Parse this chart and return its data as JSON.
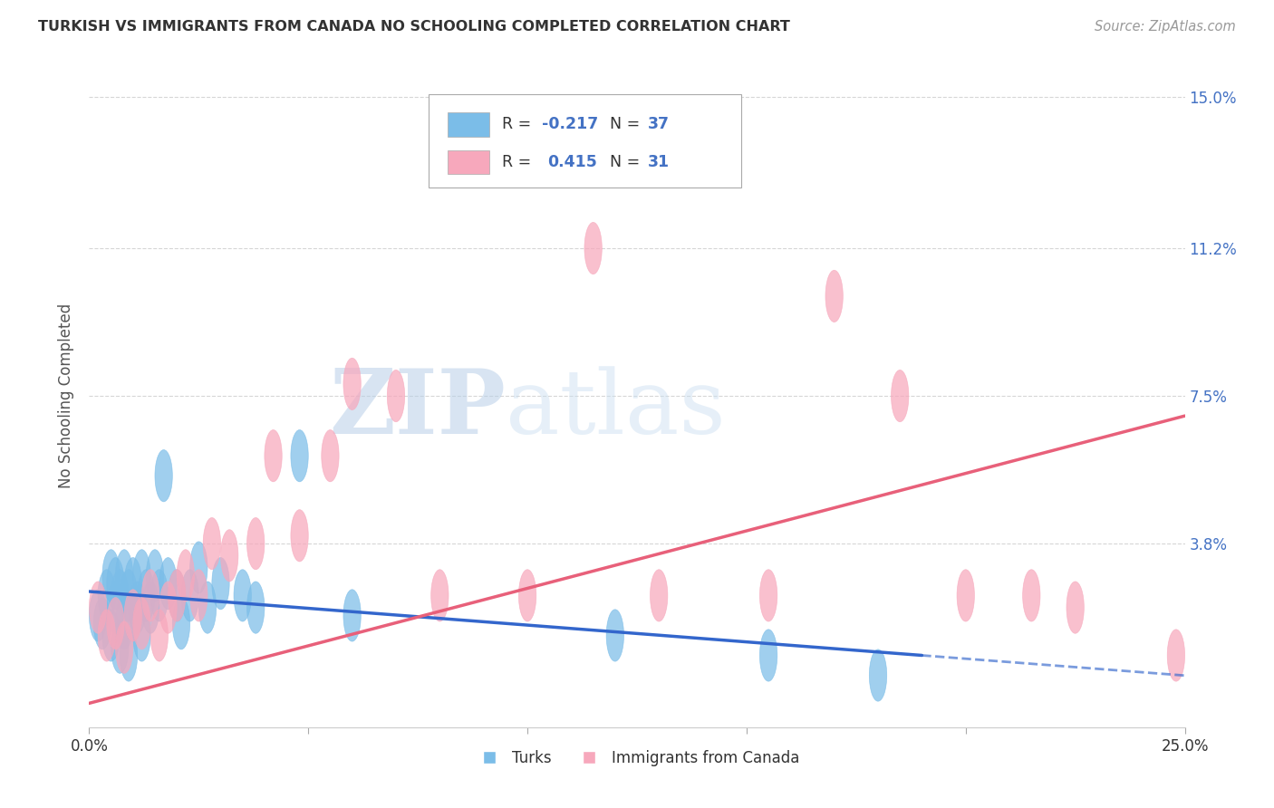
{
  "title": "TURKISH VS IMMIGRANTS FROM CANADA NO SCHOOLING COMPLETED CORRELATION CHART",
  "source": "Source: ZipAtlas.com",
  "ylabel": "No Schooling Completed",
  "legend_label1": "Turks",
  "legend_label2": "Immigrants from Canada",
  "r1": -0.217,
  "n1": 37,
  "r2": 0.415,
  "n2": 31,
  "color1": "#7bbde8",
  "color2": "#f7a8bc",
  "line_color1": "#3366cc",
  "line_color2": "#e8607a",
  "xmin": 0.0,
  "xmax": 0.25,
  "ymin": -0.008,
  "ymax": 0.158,
  "yticks": [
    0.0,
    0.038,
    0.075,
    0.112,
    0.15
  ],
  "right_tick_color": "#4472c4",
  "background_color": "#ffffff",
  "grid_color": "#cccccc",
  "turks_x": [
    0.002,
    0.003,
    0.004,
    0.005,
    0.005,
    0.006,
    0.006,
    0.007,
    0.007,
    0.008,
    0.008,
    0.009,
    0.009,
    0.01,
    0.01,
    0.011,
    0.012,
    0.012,
    0.013,
    0.014,
    0.015,
    0.016,
    0.017,
    0.018,
    0.02,
    0.021,
    0.023,
    0.025,
    0.027,
    0.03,
    0.035,
    0.038,
    0.048,
    0.06,
    0.12,
    0.155,
    0.18
  ],
  "turks_y": [
    0.02,
    0.018,
    0.025,
    0.03,
    0.015,
    0.022,
    0.028,
    0.025,
    0.012,
    0.03,
    0.018,
    0.025,
    0.01,
    0.028,
    0.02,
    0.022,
    0.03,
    0.015,
    0.025,
    0.022,
    0.03,
    0.025,
    0.055,
    0.028,
    0.025,
    0.018,
    0.025,
    0.032,
    0.022,
    0.028,
    0.025,
    0.022,
    0.06,
    0.02,
    0.015,
    0.01,
    0.005
  ],
  "canada_x": [
    0.002,
    0.004,
    0.006,
    0.008,
    0.01,
    0.012,
    0.014,
    0.016,
    0.018,
    0.02,
    0.022,
    0.025,
    0.028,
    0.032,
    0.038,
    0.042,
    0.048,
    0.055,
    0.06,
    0.07,
    0.08,
    0.1,
    0.115,
    0.13,
    0.155,
    0.17,
    0.185,
    0.2,
    0.215,
    0.225,
    0.248
  ],
  "canada_y": [
    0.022,
    0.015,
    0.018,
    0.012,
    0.02,
    0.018,
    0.025,
    0.015,
    0.022,
    0.025,
    0.03,
    0.025,
    0.038,
    0.035,
    0.038,
    0.06,
    0.04,
    0.06,
    0.078,
    0.075,
    0.025,
    0.025,
    0.112,
    0.025,
    0.025,
    0.1,
    0.075,
    0.025,
    0.025,
    0.022,
    0.01
  ],
  "blue_line_x0": 0.0,
  "blue_line_y0": 0.026,
  "blue_line_x1": 0.19,
  "blue_line_y1": 0.01,
  "pink_line_x0": 0.0,
  "pink_line_y0": -0.002,
  "pink_line_x1": 0.25,
  "pink_line_y1": 0.07
}
